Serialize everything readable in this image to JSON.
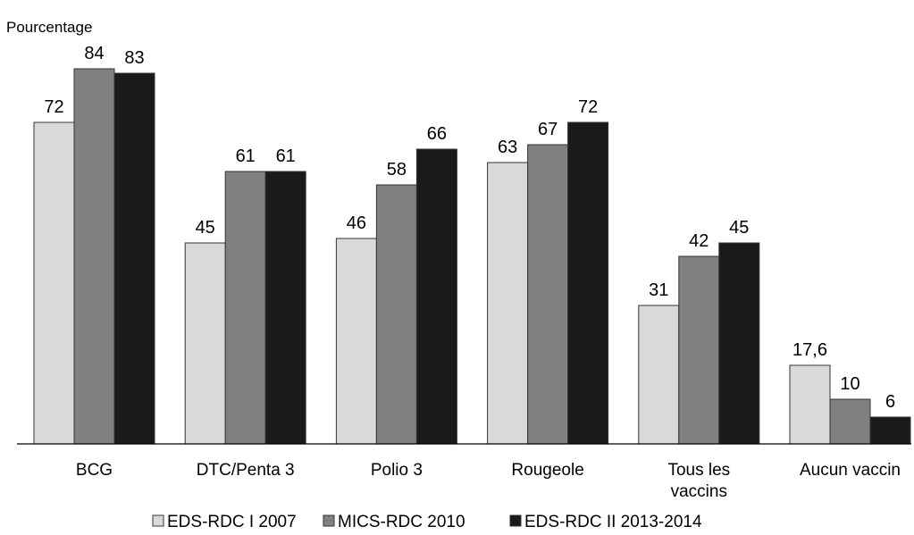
{
  "chart_data": {
    "type": "bar",
    "title": "",
    "ylabel": "Pourcentage",
    "xlabel": "",
    "ylim": [
      0,
      90
    ],
    "grid": false,
    "legend_position": "bottom",
    "categories": [
      [
        "BCG"
      ],
      [
        "DTC/Penta 3"
      ],
      [
        "Polio 3"
      ],
      [
        "Rougeole"
      ],
      [
        "Tous les",
        "vaccins"
      ],
      [
        "Aucun vaccin"
      ]
    ],
    "series": [
      {
        "name": "EDS-RDC I 2007",
        "color": "#d9d9d9",
        "values": [
          72,
          45,
          46,
          63,
          31,
          17.6
        ],
        "labels": [
          "72",
          "45",
          "46",
          "63",
          "31",
          "17,6"
        ]
      },
      {
        "name": "MICS-RDC 2010",
        "color": "#808080",
        "values": [
          84,
          61,
          58,
          67,
          42,
          10
        ],
        "labels": [
          "84",
          "61",
          "58",
          "67",
          "42",
          "10"
        ]
      },
      {
        "name": "EDS-RDC II 2013-2014",
        "color": "#1a1a1a",
        "values": [
          83,
          61,
          66,
          72,
          45,
          6
        ],
        "labels": [
          "83",
          "61",
          "66",
          "72",
          "45",
          "6"
        ]
      }
    ]
  }
}
